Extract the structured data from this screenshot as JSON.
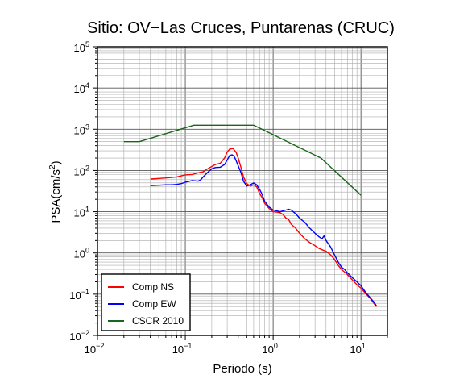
{
  "chart_data": {
    "type": "line",
    "title": "Sitio: OV−Las Cruces, Puntarenas (CRUC)",
    "xlabel": "Periodo (s)",
    "ylabel_base": "PSA(cm/s",
    "ylabel_sup": "2",
    "ylabel_close": ")",
    "x_scale": "log",
    "y_scale": "log",
    "xlim": [
      0.01,
      20
    ],
    "ylim": [
      0.01,
      100000
    ],
    "grid": true,
    "legend_position": "bottom-left",
    "x_ticks": [
      {
        "base": "10",
        "exp": "−2",
        "value": 0.01
      },
      {
        "base": "10",
        "exp": "−1",
        "value": 0.1
      },
      {
        "base": "10",
        "exp": "0",
        "value": 1
      },
      {
        "base": "10",
        "exp": "1",
        "value": 10
      }
    ],
    "y_ticks": [
      {
        "base": "10",
        "exp": "−2",
        "value": 0.01
      },
      {
        "base": "10",
        "exp": "−1",
        "value": 0.1
      },
      {
        "base": "10",
        "exp": "0",
        "value": 1
      },
      {
        "base": "10",
        "exp": "1",
        "value": 10
      },
      {
        "base": "10",
        "exp": "2",
        "value": 100
      },
      {
        "base": "10",
        "exp": "3",
        "value": 1000
      },
      {
        "base": "10",
        "exp": "4",
        "value": 10000
      },
      {
        "base": "10",
        "exp": "5",
        "value": 100000
      }
    ],
    "series": [
      {
        "name": "Comp NS",
        "color": "#ff0000",
        "points": [
          [
            0.04,
            62
          ],
          [
            0.05,
            64
          ],
          [
            0.06,
            66
          ],
          [
            0.07,
            68
          ],
          [
            0.08,
            70
          ],
          [
            0.09,
            74
          ],
          [
            0.1,
            78
          ],
          [
            0.12,
            80
          ],
          [
            0.14,
            88
          ],
          [
            0.16,
            93
          ],
          [
            0.18,
            110
          ],
          [
            0.2,
            125
          ],
          [
            0.22,
            140
          ],
          [
            0.25,
            150
          ],
          [
            0.28,
            200
          ],
          [
            0.3,
            280
          ],
          [
            0.32,
            330
          ],
          [
            0.35,
            340
          ],
          [
            0.38,
            270
          ],
          [
            0.4,
            200
          ],
          [
            0.43,
            120
          ],
          [
            0.46,
            70
          ],
          [
            0.5,
            48
          ],
          [
            0.55,
            42
          ],
          [
            0.6,
            45
          ],
          [
            0.65,
            40
          ],
          [
            0.7,
            28
          ],
          [
            0.75,
            22
          ],
          [
            0.8,
            16
          ],
          [
            0.9,
            12
          ],
          [
            1.0,
            10
          ],
          [
            1.1,
            9.8
          ],
          [
            1.2,
            9.5
          ],
          [
            1.3,
            8.5
          ],
          [
            1.4,
            7
          ],
          [
            1.5,
            6.5
          ],
          [
            1.6,
            5
          ],
          [
            1.8,
            4
          ],
          [
            2.0,
            3
          ],
          [
            2.3,
            2.2
          ],
          [
            2.6,
            1.8
          ],
          [
            3.0,
            1.5
          ],
          [
            3.3,
            1.3
          ],
          [
            3.6,
            1.2
          ],
          [
            4.0,
            1.1
          ],
          [
            4.5,
            0.9
          ],
          [
            5.0,
            0.7
          ],
          [
            5.5,
            0.5
          ],
          [
            6.0,
            0.4
          ],
          [
            7.0,
            0.3
          ],
          [
            8.0,
            0.22
          ],
          [
            9.0,
            0.17
          ],
          [
            10,
            0.14
          ],
          [
            11,
            0.11
          ],
          [
            12,
            0.09
          ],
          [
            13,
            0.075
          ],
          [
            14,
            0.06
          ],
          [
            15,
            0.05
          ]
        ]
      },
      {
        "name": "Comp EW",
        "color": "#0000ff",
        "points": [
          [
            0.04,
            43
          ],
          [
            0.05,
            44
          ],
          [
            0.06,
            45
          ],
          [
            0.07,
            45
          ],
          [
            0.08,
            46
          ],
          [
            0.09,
            48
          ],
          [
            0.1,
            52
          ],
          [
            0.12,
            57
          ],
          [
            0.14,
            55
          ],
          [
            0.15,
            60
          ],
          [
            0.16,
            70
          ],
          [
            0.18,
            90
          ],
          [
            0.2,
            110
          ],
          [
            0.22,
            118
          ],
          [
            0.25,
            120
          ],
          [
            0.28,
            140
          ],
          [
            0.3,
            180
          ],
          [
            0.32,
            230
          ],
          [
            0.34,
            240
          ],
          [
            0.36,
            220
          ],
          [
            0.38,
            170
          ],
          [
            0.4,
            130
          ],
          [
            0.43,
            90
          ],
          [
            0.46,
            55
          ],
          [
            0.5,
            42
          ],
          [
            0.55,
            45
          ],
          [
            0.6,
            50
          ],
          [
            0.65,
            45
          ],
          [
            0.7,
            35
          ],
          [
            0.75,
            26
          ],
          [
            0.8,
            18
          ],
          [
            0.9,
            13
          ],
          [
            1.0,
            11
          ],
          [
            1.1,
            10.5
          ],
          [
            1.2,
            10
          ],
          [
            1.3,
            10.5
          ],
          [
            1.4,
            11
          ],
          [
            1.5,
            11.5
          ],
          [
            1.6,
            11
          ],
          [
            1.8,
            9
          ],
          [
            2.0,
            7
          ],
          [
            2.3,
            5.5
          ],
          [
            2.6,
            4
          ],
          [
            3.0,
            3
          ],
          [
            3.3,
            2.5
          ],
          [
            3.6,
            2.2
          ],
          [
            3.8,
            2.6
          ],
          [
            4.0,
            2.0
          ],
          [
            4.5,
            1.4
          ],
          [
            5.0,
            0.9
          ],
          [
            5.5,
            0.6
          ],
          [
            6.0,
            0.45
          ],
          [
            6.5,
            0.4
          ],
          [
            7.0,
            0.33
          ],
          [
            8.0,
            0.25
          ],
          [
            9.0,
            0.2
          ],
          [
            10,
            0.16
          ],
          [
            11,
            0.12
          ],
          [
            12,
            0.095
          ],
          [
            13,
            0.078
          ],
          [
            14,
            0.065
          ],
          [
            15,
            0.052
          ]
        ]
      },
      {
        "name": "CSCR 2010",
        "color": "#1a661a",
        "points": [
          [
            0.02,
            500
          ],
          [
            0.03,
            500
          ],
          [
            0.125,
            1250
          ],
          [
            0.5,
            1250
          ],
          [
            0.6,
            1250
          ],
          [
            3.5,
            200
          ],
          [
            10,
            25
          ]
        ]
      }
    ]
  }
}
